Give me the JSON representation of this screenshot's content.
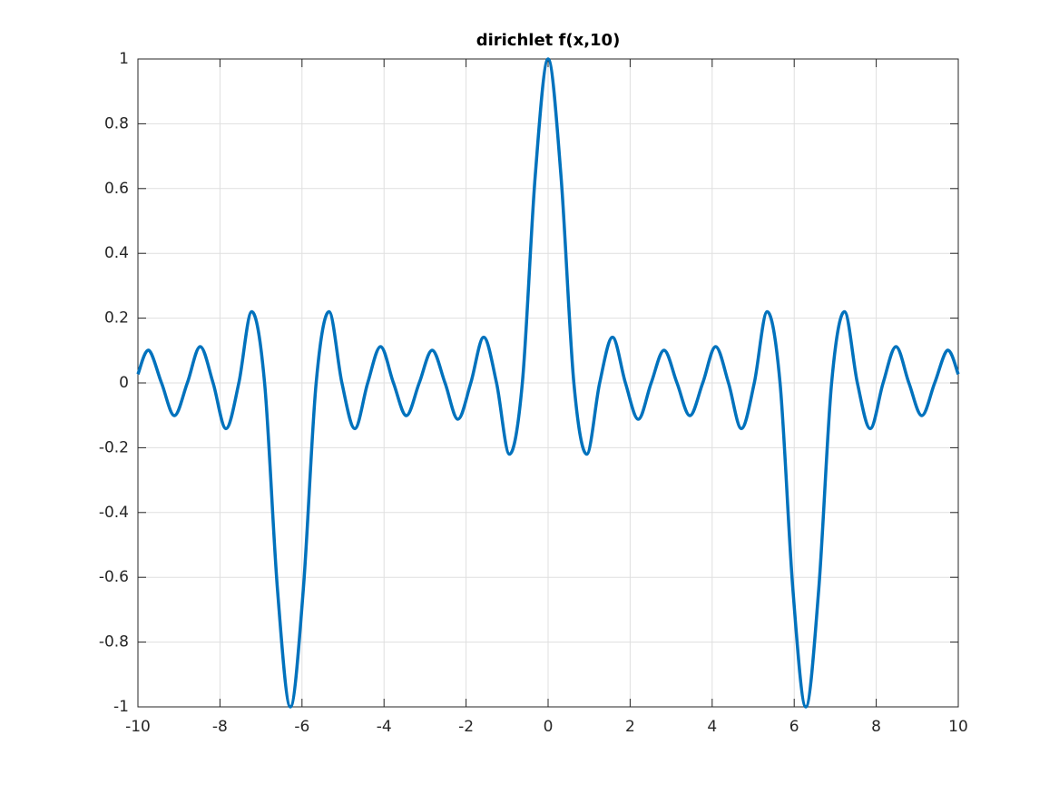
{
  "chart_data": {
    "type": "line",
    "title": "dirichlet f(x,10)",
    "x": [
      -10,
      -9.739,
      -9.425,
      -9.111,
      -8.796,
      -8.482,
      -8.168,
      -7.854,
      -7.54,
      -7.226,
      -6.912,
      -6.597,
      -6.283,
      -5.969,
      -5.655,
      -5.341,
      -5.027,
      -4.712,
      -4.398,
      -4.084,
      -3.77,
      -3.456,
      -3.142,
      -2.827,
      -2.513,
      -2.199,
      -1.885,
      -1.571,
      -1.257,
      -0.942,
      -0.628,
      -0.314,
      0,
      0.314,
      0.628,
      0.942,
      1.257,
      1.571,
      1.885,
      2.199,
      2.513,
      2.827,
      3.142,
      3.456,
      3.77,
      4.084,
      4.398,
      4.712,
      5.027,
      5.341,
      5.655,
      5.969,
      6.283,
      6.597,
      6.912,
      7.226,
      7.54,
      7.854,
      8.168,
      8.482,
      8.796,
      9.111,
      9.425,
      9.739,
      10
    ],
    "series": [
      {
        "color": "#0072bd",
        "values": [
          0.027,
          0.101,
          0,
          -0.101,
          0,
          0.112,
          0,
          -0.141,
          0,
          0.22,
          0,
          -0.639,
          -1,
          -0.639,
          0,
          0.22,
          0,
          -0.141,
          0,
          0.112,
          0,
          -0.101,
          0,
          0.101,
          0,
          -0.112,
          0,
          0.141,
          0,
          -0.22,
          0,
          0.639,
          1,
          0.639,
          0,
          -0.22,
          0,
          0.141,
          0,
          -0.112,
          0,
          0.101,
          0,
          -0.101,
          0,
          0.112,
          0,
          -0.141,
          0,
          0.22,
          0,
          -0.639,
          -1,
          -0.639,
          0,
          0.22,
          0,
          -0.141,
          0,
          0.112,
          0,
          -0.101,
          0,
          0.101,
          0.027
        ]
      }
    ],
    "xlim": [
      -10,
      10
    ],
    "xticks": [
      -10,
      -8,
      -6,
      -4,
      -2,
      0,
      2,
      4,
      6,
      8,
      10
    ],
    "ylim": [
      -1,
      1
    ],
    "yticks": [
      -1,
      -0.8,
      -0.6,
      -0.4,
      -0.2,
      0,
      0.2,
      0.4,
      0.6,
      0.8,
      1
    ],
    "grid": true
  }
}
